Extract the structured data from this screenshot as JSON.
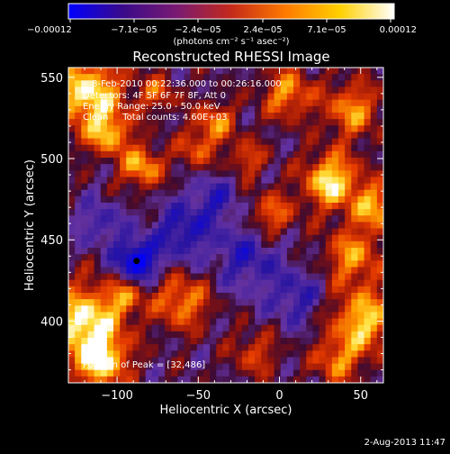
{
  "chart_data": {
    "type": "heatmap",
    "title": "Reconstructed RHESSI Image",
    "xlabel": "Heliocentric X (arcsec)",
    "ylabel": "Heliocentric Y (arcsec)",
    "xlim": [
      -130,
      64
    ],
    "ylim": [
      362,
      556
    ],
    "x_ticks": [
      {
        "value": -100,
        "label": "−100"
      },
      {
        "value": -50,
        "label": "−50"
      },
      {
        "value": 0,
        "label": "0"
      },
      {
        "value": 50,
        "label": "50"
      }
    ],
    "y_ticks": [
      {
        "value": 400,
        "label": "400"
      },
      {
        "value": 450,
        "label": "450"
      },
      {
        "value": 500,
        "label": "500"
      },
      {
        "value": 550,
        "label": "550"
      }
    ],
    "colorbar": {
      "range": [
        -0.00012,
        0.00012
      ],
      "tick_labels": [
        "−0.00012",
        "−7.1e−05",
        "−2.4e−05",
        "2.4e−05",
        "7.1e−05",
        "0.00012"
      ],
      "units": "(photons cm⁻² s⁻¹ asec⁻²)",
      "colors": [
        "#0000ff",
        "#3a0a8a",
        "#7a1a72",
        "#c42a1a",
        "#ff7a00",
        "#ffd000",
        "#ffffff"
      ]
    },
    "info_lines": [
      "8-Feb-2010 00:22:36.000 to 00:26:16.000",
      "Detectors: 4F 5F 6F 7F 8F, Att 0",
      "Energy Range: 25.0 - 50.0 keV",
      "Clean     Total counts: 4.60E+03"
    ],
    "peak_label": "Position of Peak = [32,486]",
    "peak": {
      "x": 32,
      "y": 486
    },
    "min_marker": {
      "x": -88,
      "y": 437
    },
    "sources": [
      {
        "x": -118,
        "y": 540,
        "v": 1.0,
        "s": 16
      },
      {
        "x": -105,
        "y": 515,
        "v": 0.7,
        "s": 9
      },
      {
        "x": -85,
        "y": 495,
        "v": 0.8,
        "s": 9
      },
      {
        "x": -40,
        "y": 522,
        "v": 0.65,
        "s": 9
      },
      {
        "x": -52,
        "y": 505,
        "v": 0.5,
        "s": 8
      },
      {
        "x": 5,
        "y": 540,
        "v": 0.7,
        "s": 11
      },
      {
        "x": 45,
        "y": 530,
        "v": 0.7,
        "s": 12
      },
      {
        "x": 32,
        "y": 486,
        "v": 1.0,
        "s": 12
      },
      {
        "x": 60,
        "y": 470,
        "v": 0.8,
        "s": 10
      },
      {
        "x": 45,
        "y": 440,
        "v": 0.7,
        "s": 12
      },
      {
        "x": -5,
        "y": 465,
        "v": 0.6,
        "s": 10
      },
      {
        "x": -120,
        "y": 400,
        "v": 1.0,
        "s": 16
      },
      {
        "x": -110,
        "y": 375,
        "v": 0.9,
        "s": 12
      },
      {
        "x": -60,
        "y": 412,
        "v": 0.7,
        "s": 12
      },
      {
        "x": 52,
        "y": 400,
        "v": 0.9,
        "s": 14
      },
      {
        "x": 35,
        "y": 375,
        "v": 0.6,
        "s": 10
      },
      {
        "x": -15,
        "y": 380,
        "v": 0.45,
        "s": 10
      },
      {
        "x": -95,
        "y": 415,
        "v": 0.55,
        "s": 8
      },
      {
        "x": -20,
        "y": 500,
        "v": 0.5,
        "s": 8
      },
      {
        "x": -75,
        "y": 540,
        "v": 0.5,
        "s": 8
      },
      {
        "x": -88,
        "y": 437,
        "v": -1.0,
        "s": 9
      },
      {
        "x": -60,
        "y": 455,
        "v": -0.6,
        "s": 12
      },
      {
        "x": -20,
        "y": 440,
        "v": -0.5,
        "s": 14
      },
      {
        "x": 10,
        "y": 415,
        "v": -0.45,
        "s": 12
      },
      {
        "x": -40,
        "y": 475,
        "v": -0.45,
        "s": 10
      },
      {
        "x": -110,
        "y": 460,
        "v": -0.4,
        "s": 10
      }
    ]
  },
  "footer": {
    "date": "2-Aug-2013 11:47"
  }
}
